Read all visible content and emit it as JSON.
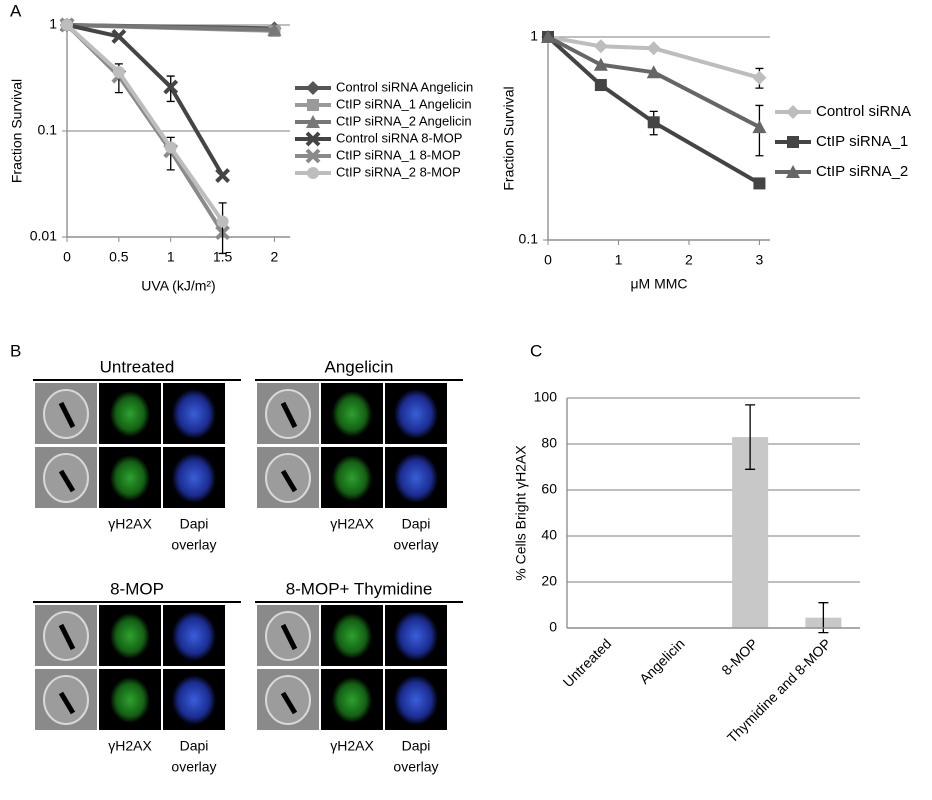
{
  "panels": [
    "A",
    "B",
    "C"
  ],
  "microscopy": [
    {
      "title": "Untreated",
      "labels": [
        "γH2AX",
        "Dapi",
        "overlay"
      ]
    },
    {
      "title": "Angelicin",
      "labels": [
        "γH2AX",
        "Dapi",
        "overlay"
      ]
    },
    {
      "title": "8-MOP",
      "labels": [
        "γH2AX",
        "Dapi",
        "overlay"
      ]
    },
    {
      "title": "8-MOP+ Thymidine",
      "labels": [
        "γH2AX",
        "Dapi",
        "overlay"
      ]
    }
  ],
  "chart_data": [
    {
      "type": "line",
      "y_label": "Fraction Survival",
      "x_label": "UVA (kJ/m²)",
      "log_y": true,
      "xlim": [
        0,
        2.15
      ],
      "xticks": [
        0,
        0.5,
        1,
        1.5,
        2
      ],
      "ylim": [
        0.01,
        1
      ],
      "yticks": [
        1,
        0.1,
        0.01
      ],
      "grid": true,
      "legend": "right",
      "series": [
        {
          "name": "Control siRNA Angelicin",
          "color": "#555555",
          "marker": "diamond",
          "x": [
            0,
            2
          ],
          "values": [
            1,
            0.93
          ]
        },
        {
          "name": "CtIP siRNA_1 Angelicin",
          "color": "#9a9a9a",
          "marker": "square",
          "x": [
            0,
            2
          ],
          "values": [
            1,
            0.88
          ]
        },
        {
          "name": "CtIP siRNA_2  Angelicin",
          "color": "#777777",
          "marker": "triangle",
          "x": [
            0,
            2
          ],
          "values": [
            1,
            0.9
          ]
        },
        {
          "name": "Control siRNA 8-MOP",
          "color": "#444444",
          "marker": "x",
          "x": [
            0,
            0.5,
            1,
            1.5
          ],
          "values": [
            1,
            0.78,
            0.26,
            0.038
          ],
          "errors": [
            null,
            null,
            0.07,
            null
          ]
        },
        {
          "name": "CtIP siRNA_1 8-MOP",
          "color": "#8a8a8a",
          "marker": "x",
          "x": [
            0,
            0.5,
            1,
            1.5
          ],
          "values": [
            1,
            0.33,
            0.065,
            0.011
          ],
          "errors": [
            null,
            0.1,
            0.022,
            null
          ]
        },
        {
          "name": "CtIP siRNA_2 8-MOP",
          "color": "#bdbdbd",
          "marker": "circle",
          "x": [
            0,
            0.5,
            1,
            1.5
          ],
          "values": [
            1,
            0.36,
            0.07,
            0.014
          ],
          "errors": [
            null,
            null,
            null,
            0.007
          ]
        }
      ]
    },
    {
      "type": "line",
      "y_label": "Fraction Survival",
      "x_label": "μM MMC",
      "log_y": true,
      "xlim": [
        0,
        3.15
      ],
      "xticks": [
        0,
        1,
        2,
        3
      ],
      "ylim": [
        0.1,
        1
      ],
      "yticks": [
        1,
        0.1
      ],
      "grid": true,
      "legend": "right",
      "series": [
        {
          "name": "Control siRNA",
          "color": "#bdbdbd",
          "marker": "diamond",
          "x": [
            0,
            0.75,
            1.5,
            3
          ],
          "values": [
            1,
            0.9,
            0.88,
            0.63
          ],
          "errors": [
            null,
            null,
            null,
            0.07
          ]
        },
        {
          "name": "CtIP siRNA_1",
          "color": "#444444",
          "marker": "square",
          "x": [
            0,
            0.75,
            1.5,
            3
          ],
          "values": [
            1,
            0.58,
            0.38,
            0.19
          ],
          "errors": [
            null,
            null,
            0.05,
            null
          ]
        },
        {
          "name": "CtIP siRNA_2",
          "color": "#666666",
          "marker": "triangle",
          "x": [
            0,
            0.75,
            1.5,
            3
          ],
          "values": [
            1,
            0.73,
            0.67,
            0.36
          ],
          "errors": [
            null,
            null,
            null,
            0.1
          ]
        }
      ]
    },
    {
      "type": "bar",
      "y_label": "% Cells Bright γH2AX",
      "color": "#c8c8c8",
      "categories": [
        "Untreated",
        "Angelicin",
        "8-MOP",
        "Thymidine and 8-MOP"
      ],
      "values": [
        0.2,
        0.2,
        83,
        4.5
      ],
      "errors": [
        null,
        null,
        14,
        6.5
      ],
      "ylim": [
        0,
        100
      ],
      "yticks": [
        0,
        20,
        40,
        60,
        80,
        100
      ],
      "grid": true
    }
  ]
}
